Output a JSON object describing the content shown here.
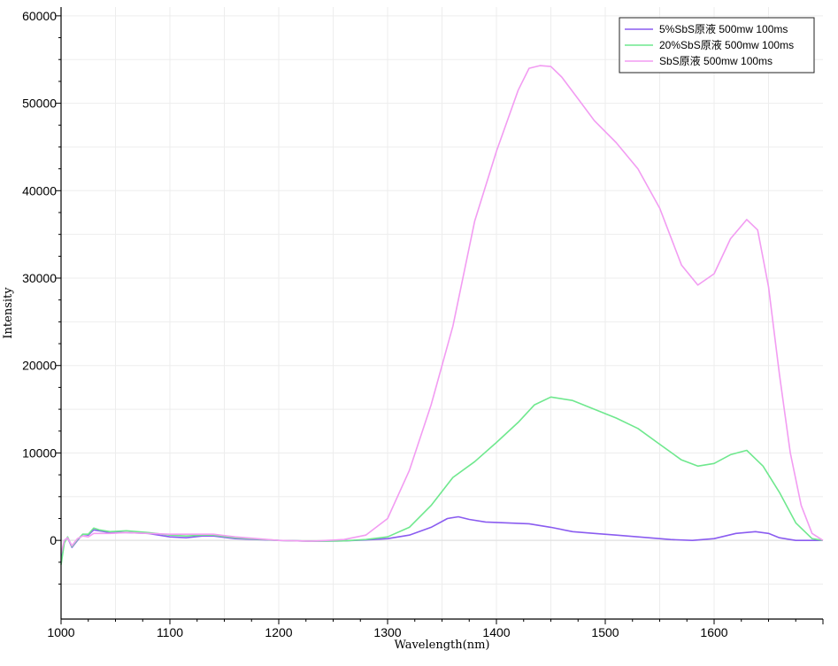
{
  "chart_data": {
    "type": "line",
    "title": "",
    "xlabel": "Wavelength(nm)",
    "ylabel": "Intensity",
    "xlim": [
      1000,
      1700
    ],
    "ylim": [
      -9000,
      61000
    ],
    "xticks": [
      1000,
      1100,
      1200,
      1300,
      1400,
      1500,
      1600
    ],
    "yticks": [
      0,
      10000,
      20000,
      30000,
      40000,
      50000,
      60000
    ],
    "grid": true,
    "legend_position": "top-right",
    "series": [
      {
        "name": "5%SbS原液 500mw 100ms",
        "color": "#8a5cf0",
        "points": [
          [
            1000,
            -2500
          ],
          [
            1003,
            0
          ],
          [
            1006,
            300
          ],
          [
            1010,
            -800
          ],
          [
            1015,
            0
          ],
          [
            1020,
            700
          ],
          [
            1025,
            600
          ],
          [
            1030,
            1200
          ],
          [
            1035,
            1100
          ],
          [
            1045,
            900
          ],
          [
            1060,
            900
          ],
          [
            1080,
            800
          ],
          [
            1100,
            400
          ],
          [
            1115,
            300
          ],
          [
            1130,
            500
          ],
          [
            1140,
            500
          ],
          [
            1160,
            200
          ],
          [
            1200,
            0
          ],
          [
            1230,
            -100
          ],
          [
            1260,
            -50
          ],
          [
            1280,
            50
          ],
          [
            1300,
            200
          ],
          [
            1320,
            600
          ],
          [
            1340,
            1500
          ],
          [
            1355,
            2500
          ],
          [
            1365,
            2700
          ],
          [
            1375,
            2400
          ],
          [
            1390,
            2100
          ],
          [
            1410,
            2000
          ],
          [
            1430,
            1900
          ],
          [
            1450,
            1500
          ],
          [
            1470,
            1000
          ],
          [
            1490,
            800
          ],
          [
            1510,
            600
          ],
          [
            1540,
            300
          ],
          [
            1560,
            100
          ],
          [
            1580,
            0
          ],
          [
            1600,
            200
          ],
          [
            1620,
            800
          ],
          [
            1638,
            1000
          ],
          [
            1650,
            800
          ],
          [
            1660,
            300
          ],
          [
            1675,
            0
          ],
          [
            1700,
            0
          ]
        ]
      },
      {
        "name": "20%SbS原液 500mw 100ms",
        "color": "#6fe88e",
        "points": [
          [
            1000,
            -2800
          ],
          [
            1003,
            -300
          ],
          [
            1006,
            400
          ],
          [
            1010,
            -700
          ],
          [
            1015,
            100
          ],
          [
            1020,
            700
          ],
          [
            1025,
            700
          ],
          [
            1030,
            1400
          ],
          [
            1035,
            1200
          ],
          [
            1045,
            1000
          ],
          [
            1060,
            1100
          ],
          [
            1080,
            900
          ],
          [
            1100,
            600
          ],
          [
            1115,
            500
          ],
          [
            1130,
            600
          ],
          [
            1140,
            600
          ],
          [
            1160,
            300
          ],
          [
            1200,
            0
          ],
          [
            1230,
            -100
          ],
          [
            1260,
            -50
          ],
          [
            1280,
            100
          ],
          [
            1300,
            400
          ],
          [
            1320,
            1500
          ],
          [
            1340,
            4000
          ],
          [
            1360,
            7200
          ],
          [
            1380,
            9000
          ],
          [
            1400,
            11200
          ],
          [
            1420,
            13500
          ],
          [
            1435,
            15500
          ],
          [
            1450,
            16400
          ],
          [
            1470,
            16000
          ],
          [
            1490,
            15000
          ],
          [
            1510,
            14000
          ],
          [
            1530,
            12800
          ],
          [
            1550,
            11000
          ],
          [
            1570,
            9200
          ],
          [
            1585,
            8500
          ],
          [
            1600,
            8800
          ],
          [
            1615,
            9800
          ],
          [
            1630,
            10300
          ],
          [
            1645,
            8500
          ],
          [
            1660,
            5500
          ],
          [
            1675,
            2000
          ],
          [
            1690,
            200
          ],
          [
            1700,
            0
          ]
        ]
      },
      {
        "name": "SbS原液 500mw 100ms",
        "color": "#f29cf2",
        "points": [
          [
            1000,
            -1500
          ],
          [
            1003,
            0
          ],
          [
            1006,
            300
          ],
          [
            1010,
            -600
          ],
          [
            1015,
            200
          ],
          [
            1020,
            500
          ],
          [
            1025,
            400
          ],
          [
            1030,
            800
          ],
          [
            1045,
            800
          ],
          [
            1060,
            900
          ],
          [
            1080,
            800
          ],
          [
            1100,
            700
          ],
          [
            1120,
            700
          ],
          [
            1140,
            700
          ],
          [
            1160,
            400
          ],
          [
            1200,
            0
          ],
          [
            1230,
            -100
          ],
          [
            1260,
            100
          ],
          [
            1280,
            600
          ],
          [
            1300,
            2500
          ],
          [
            1320,
            8000
          ],
          [
            1340,
            15500
          ],
          [
            1360,
            24500
          ],
          [
            1380,
            36500
          ],
          [
            1400,
            44500
          ],
          [
            1420,
            51500
          ],
          [
            1430,
            54000
          ],
          [
            1440,
            54300
          ],
          [
            1450,
            54200
          ],
          [
            1460,
            53000
          ],
          [
            1475,
            50500
          ],
          [
            1490,
            48000
          ],
          [
            1510,
            45500
          ],
          [
            1530,
            42500
          ],
          [
            1550,
            38000
          ],
          [
            1570,
            31500
          ],
          [
            1585,
            29200
          ],
          [
            1600,
            30500
          ],
          [
            1615,
            34500
          ],
          [
            1630,
            36700
          ],
          [
            1640,
            35500
          ],
          [
            1650,
            29000
          ],
          [
            1660,
            19000
          ],
          [
            1670,
            10000
          ],
          [
            1680,
            4000
          ],
          [
            1690,
            800
          ],
          [
            1700,
            0
          ]
        ]
      }
    ]
  }
}
